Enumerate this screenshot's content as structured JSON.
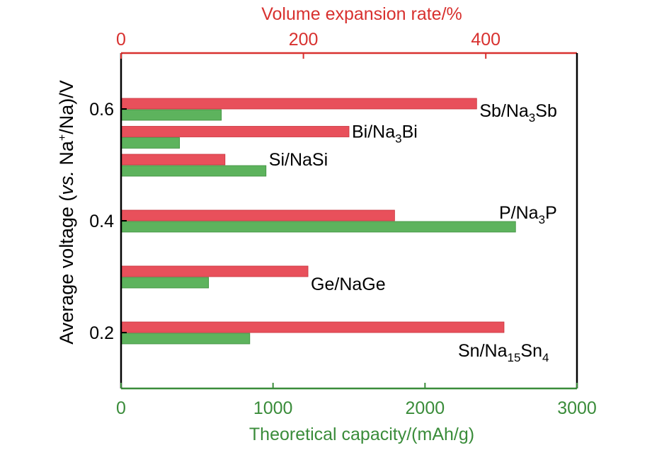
{
  "chart_data": {
    "type": "bar",
    "orientation": "horizontal",
    "title": "",
    "top_axis": {
      "label": "Volume expansion rate/%",
      "ticks": [
        "0",
        "200",
        "400"
      ],
      "range": [
        0,
        500
      ],
      "color": "#d8312f"
    },
    "bottom_axis": {
      "label": "Theoretical capacity/(mAh/g)",
      "ticks": [
        "0",
        "1000",
        "2000",
        "3000"
      ],
      "range": [
        0,
        3000
      ],
      "color": "#3a8c3a"
    },
    "left_axis": {
      "label_parts": [
        {
          "text": "Average voltage (",
          "style": "normal"
        },
        {
          "text": "vs.",
          "style": "italic"
        },
        {
          "text": " Na",
          "style": "normal"
        },
        {
          "text": "+",
          "style": "sup"
        },
        {
          "text": "/Na)/V",
          "style": "normal"
        }
      ],
      "ticks": [
        "0.2",
        "0.4",
        "0.6"
      ],
      "range": [
        0.1,
        0.7
      ]
    },
    "series": [
      {
        "name": "Volume expansion rate",
        "color": "#e8505b",
        "axis": "top"
      },
      {
        "name": "Theoretical capacity",
        "color": "#5db35d",
        "axis": "bottom"
      }
    ],
    "materials": [
      {
        "voltage": 0.6,
        "expansion": 390,
        "capacity": 660,
        "label_parts": [
          {
            "text": "Sb/Na"
          },
          {
            "text": "3",
            "sub": true
          },
          {
            "text": "Sb"
          }
        ]
      },
      {
        "voltage": 0.55,
        "expansion": 250,
        "capacity": 385,
        "label_parts": [
          {
            "text": "Bi/Na"
          },
          {
            "text": "3",
            "sub": true
          },
          {
            "text": "Bi"
          }
        ]
      },
      {
        "voltage": 0.5,
        "expansion": 114,
        "capacity": 954,
        "label_parts": [
          {
            "text": "Si/NaSi"
          }
        ]
      },
      {
        "voltage": 0.4,
        "expansion": 300,
        "capacity": 2596,
        "label_parts": [
          {
            "text": "P/Na"
          },
          {
            "text": "3",
            "sub": true
          },
          {
            "text": "P"
          }
        ]
      },
      {
        "voltage": 0.3,
        "expansion": 205,
        "capacity": 576,
        "label_parts": [
          {
            "text": "Ge/NaGe"
          }
        ]
      },
      {
        "voltage": 0.2,
        "expansion": 420,
        "capacity": 847,
        "label_parts": [
          {
            "text": "Sn/Na"
          },
          {
            "text": "15",
            "sub": true
          },
          {
            "text": "Sn"
          },
          {
            "text": "4",
            "sub": true
          }
        ]
      }
    ]
  }
}
